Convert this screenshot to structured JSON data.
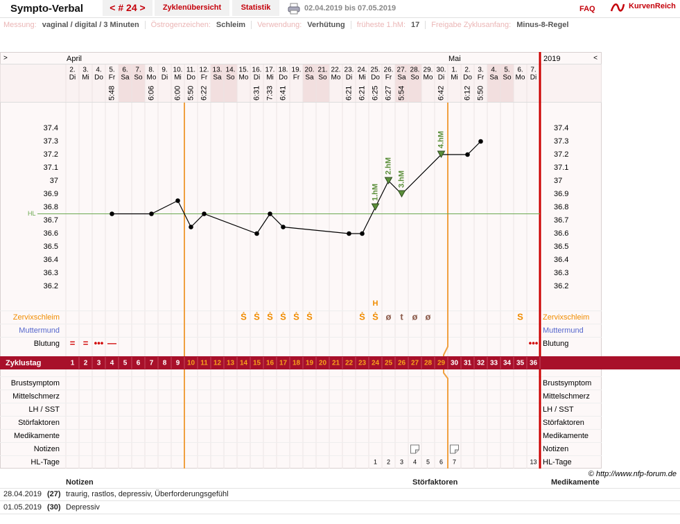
{
  "header": {
    "title": "Sympto-Verbal",
    "cycle": "< # 24 >",
    "tabs": [
      "Zyklenübersicht",
      "Statistik"
    ],
    "range": "02.04.2019 bis 07.05.2019",
    "faq": "FAQ",
    "logo": "KurvenReich"
  },
  "settings": [
    {
      "label": "Messung:",
      "value": "vaginal / digital / 3 Minuten"
    },
    {
      "label": "Östrogenzeichen:",
      "value": "Schleim"
    },
    {
      "label": "Verwendung:",
      "value": "Verhütung"
    },
    {
      "label": "früheste 1.hM:",
      "value": "17"
    },
    {
      "label": "Freigabe Zyklusanfang:",
      "value": "Minus-8-Regel"
    }
  ],
  "chart_data": {
    "type": "line",
    "nav_prev": ">",
    "nav_next": "<",
    "year": "2019",
    "months": [
      "April",
      null,
      null,
      null,
      null,
      null,
      null,
      null,
      null,
      null,
      null,
      null,
      null,
      null,
      null,
      null,
      null,
      null,
      null,
      null,
      null,
      null,
      null,
      null,
      null,
      null,
      null,
      null,
      null,
      "Mai",
      null,
      null,
      null,
      null,
      null,
      null
    ],
    "dates": [
      "2.",
      "3.",
      "4.",
      "5.",
      "6.",
      "7.",
      "8.",
      "9.",
      "10.",
      "11.",
      "12.",
      "13.",
      "14.",
      "15.",
      "16.",
      "17.",
      "18.",
      "19.",
      "20.",
      "21.",
      "22.",
      "23.",
      "24.",
      "25.",
      "26.",
      "27.",
      "28.",
      "29.",
      "30.",
      "1.",
      "2.",
      "3.",
      "4.",
      "5.",
      "6.",
      "7."
    ],
    "weekdays": [
      "Di",
      "Mi",
      "Do",
      "Fr",
      "Sa",
      "So",
      "Mo",
      "Di",
      "Mi",
      "Do",
      "Fr",
      "Sa",
      "So",
      "Mo",
      "Di",
      "Mi",
      "Do",
      "Fr",
      "Sa",
      "So",
      "Mo",
      "Di",
      "Mi",
      "Do",
      "Fr",
      "Sa",
      "So",
      "Mo",
      "Di",
      "Mi",
      "Do",
      "Fr",
      "Sa",
      "So",
      "Mo",
      "Di"
    ],
    "weekend_days": [
      5,
      6,
      12,
      13,
      19,
      20,
      26,
      27,
      33,
      34
    ],
    "times": [
      null,
      null,
      null,
      "5:48",
      null,
      null,
      "6:06",
      null,
      "6:00",
      "5:50",
      "6:22",
      null,
      null,
      null,
      "6:31",
      "7:33",
      "6:41",
      null,
      null,
      null,
      null,
      "6:21",
      "6:21",
      "6:25",
      "6:27",
      "5:54",
      null,
      null,
      "6:42",
      null,
      "6:12",
      "5:50",
      null,
      null,
      null,
      null
    ],
    "x": [
      4,
      7,
      9,
      10,
      11,
      15,
      16,
      17,
      22,
      23,
      24,
      25,
      26,
      29,
      31,
      32
    ],
    "values": [
      36.75,
      36.75,
      36.85,
      36.65,
      36.75,
      36.6,
      36.75,
      36.65,
      36.6,
      36.6,
      36.8,
      37,
      36.9,
      37.2,
      37.2,
      37.3
    ],
    "line_color": "#000000",
    "xlim": [
      0.5,
      36.5
    ],
    "ylim": [
      36.0,
      37.6
    ],
    "yticks": [
      36.2,
      36.3,
      36.4,
      36.5,
      36.6,
      36.7,
      36.8,
      36.9,
      37,
      37.1,
      37.2,
      37.3,
      37.4
    ],
    "hl": {
      "label": "HL",
      "value": 36.75,
      "color": "#6aa84f"
    },
    "annotation_color": "#5b8f3a",
    "annotations": [
      {
        "x": 24,
        "label": "1.hM"
      },
      {
        "x": 25,
        "label": "2.hM"
      },
      {
        "x": 26,
        "label": "3.hM"
      },
      {
        "x": 29,
        "label": "4.hM"
      }
    ],
    "upper_rows": [
      {
        "label": "Zervixschleim",
        "color": "#f08c00",
        "marks": [
          {
            "day": 14,
            "symbol": "Ṡ"
          },
          {
            "day": 15,
            "symbol": "Ṡ"
          },
          {
            "day": 16,
            "symbol": "Ṡ"
          },
          {
            "day": 17,
            "symbol": "Ṡ"
          },
          {
            "day": 18,
            "symbol": "Ṡ"
          },
          {
            "day": 19,
            "symbol": "Ṡ"
          },
          {
            "day": 23,
            "symbol": "Ṡ"
          },
          {
            "day": 24,
            "symbol": "Ṡ",
            "top": "H"
          },
          {
            "day": 25,
            "symbol": "ø",
            "color": "#8b5a4a"
          },
          {
            "day": 26,
            "symbol": "t",
            "color": "#8b5a4a"
          },
          {
            "day": 27,
            "symbol": "ø",
            "color": "#8b5a4a"
          },
          {
            "day": 28,
            "symbol": "ø",
            "color": "#8b5a4a"
          },
          {
            "day": 35,
            "symbol": "S"
          }
        ]
      },
      {
        "label": "Muttermund",
        "color": "#5566cc",
        "marks": []
      },
      {
        "label": "Blutung",
        "color": "#000000",
        "marks": [
          {
            "day": 1,
            "symbol": "=",
            "color": "#d00000"
          },
          {
            "day": 2,
            "symbol": "=",
            "color": "#d00000"
          },
          {
            "day": 3,
            "symbol": "•••",
            "color": "#d00000"
          },
          {
            "day": 4,
            "symbol": "—",
            "color": "#d00000"
          },
          {
            "day": 36,
            "symbol": "•••",
            "color": "#d00000"
          }
        ]
      }
    ],
    "cycle_label": "Zyklustag",
    "cycle_days": [
      1,
      2,
      3,
      4,
      5,
      6,
      7,
      8,
      9,
      10,
      11,
      12,
      13,
      14,
      15,
      16,
      17,
      18,
      19,
      20,
      21,
      22,
      23,
      24,
      25,
      26,
      27,
      28,
      29,
      30,
      31,
      32,
      33,
      34,
      35,
      36
    ],
    "highlight_from": 10,
    "highlight_to": 29,
    "highlight_color": "#f7a21b",
    "lower_rows": [
      {
        "label": "Brustsymptom",
        "color": "#000000",
        "marks": []
      },
      {
        "label": "Mittelschmerz",
        "color": "#000000",
        "marks": []
      },
      {
        "label": "LH / SST",
        "color": "#000000",
        "marks": []
      },
      {
        "label": "Störfaktoren",
        "color": "#000000",
        "marks": []
      },
      {
        "label": "Medikamente",
        "color": "#000000",
        "marks": []
      },
      {
        "label": "Notizen",
        "color": "#000000",
        "marks": [
          {
            "day": 27
          },
          {
            "day": 30
          }
        ]
      },
      {
        "label": "HL-Tage",
        "color": "#000000",
        "marks": [
          {
            "day": 24,
            "symbol": 1
          },
          {
            "day": 25,
            "symbol": 2
          },
          {
            "day": 26,
            "symbol": 3
          },
          {
            "day": 27,
            "symbol": 4
          },
          {
            "day": 28,
            "symbol": 5
          },
          {
            "day": 29,
            "symbol": 6
          },
          {
            "day": 30,
            "symbol": 7
          },
          {
            "day": 36,
            "symbol": 13
          }
        ]
      }
    ]
  },
  "copyright": "© http://www.nfp-forum.de",
  "notes_table": {
    "headers": [
      "Notizen",
      "Störfaktoren",
      "Medikamente"
    ],
    "rows": [
      [
        "28.04.2019",
        "(27)",
        "traurig, rastlos, depressiv, Überforderungsgefühl"
      ],
      [
        "01.05.2019",
        "(30)",
        "Depressiv"
      ]
    ]
  }
}
